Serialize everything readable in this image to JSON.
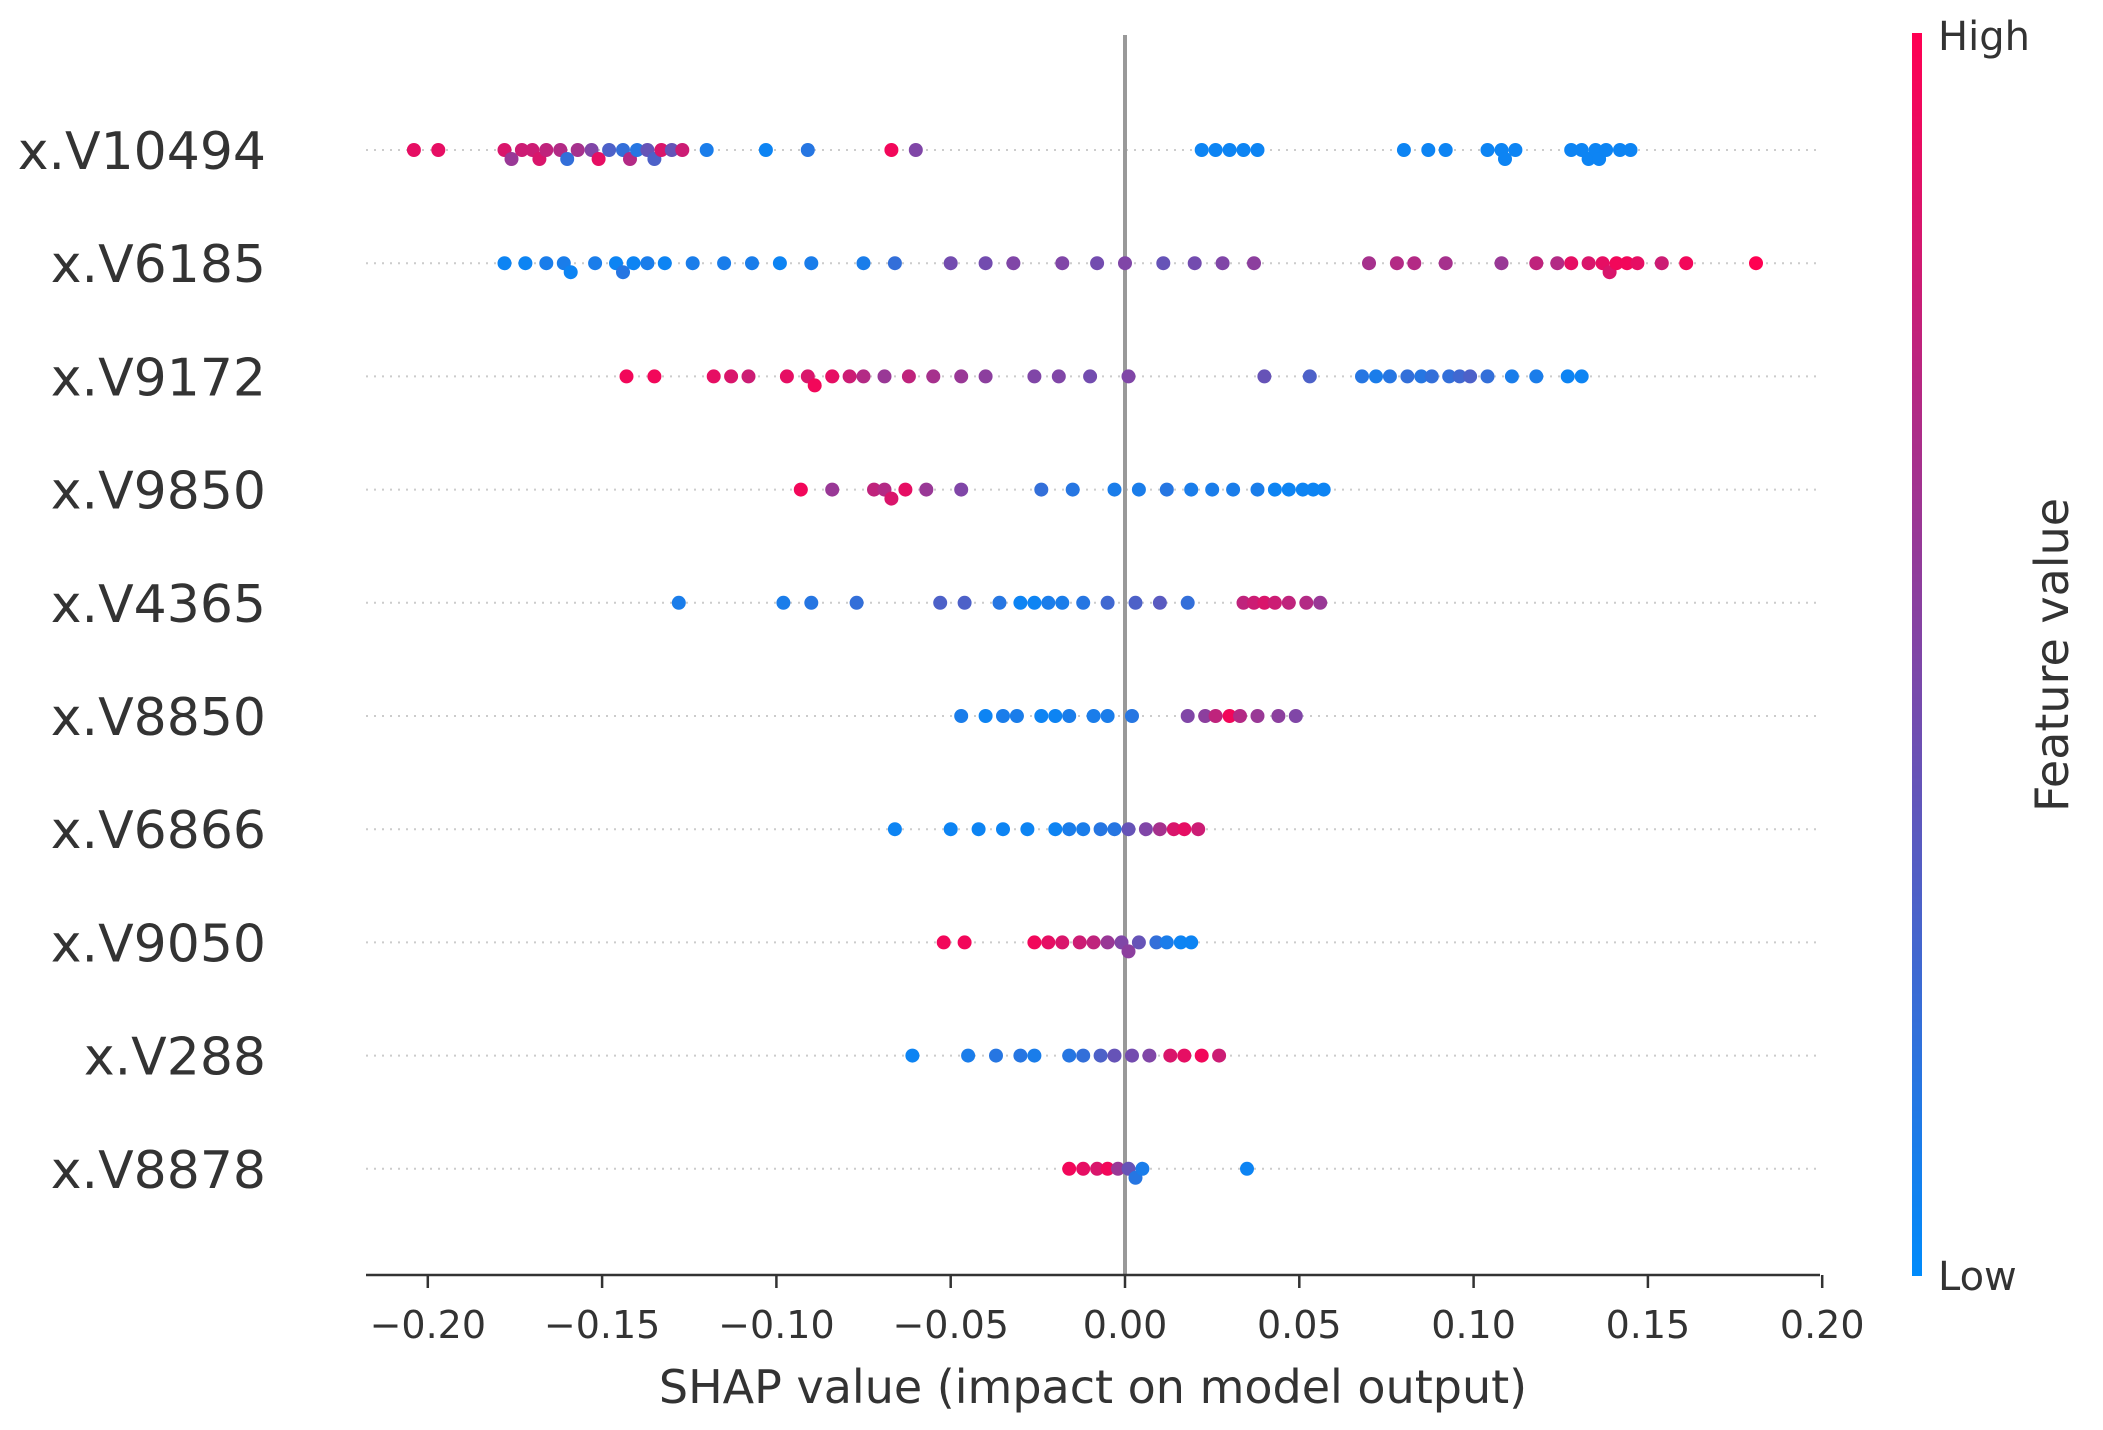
{
  "chart_data": {
    "type": "scatter",
    "subtype": "shap-beeswarm",
    "xlabel": "SHAP value (impact on model output)",
    "xlim": [
      -0.223,
      0.2
    ],
    "xticks": [
      -0.2,
      -0.15,
      -0.1,
      -0.05,
      0.0,
      0.05,
      0.1,
      0.15,
      0.2
    ],
    "xtick_labels": [
      "−0.20",
      "−0.15",
      "−0.10",
      "−0.05",
      "0.00",
      "0.05",
      "0.10",
      "0.15",
      "0.20"
    ],
    "grid": false,
    "zero_line": true,
    "colorbar": {
      "label": "Feature value",
      "high_label": "High",
      "low_label": "Low",
      "high_color": "#ff0052",
      "low_color": "#008bfb",
      "placement": "right"
    },
    "features": [
      {
        "name": "x.V10494",
        "points": [
          [
            -0.204,
            0.9
          ],
          [
            -0.197,
            0.9
          ],
          [
            -0.178,
            0.85
          ],
          [
            -0.173,
            0.8
          ],
          [
            -0.17,
            0.8
          ],
          [
            -0.166,
            0.75
          ],
          [
            -0.162,
            0.7
          ],
          [
            -0.157,
            0.65
          ],
          [
            -0.153,
            0.5
          ],
          [
            -0.148,
            0.3
          ],
          [
            -0.144,
            0.2
          ],
          [
            -0.14,
            0.15
          ],
          [
            -0.135,
            0.3
          ],
          [
            -0.13,
            0.4
          ],
          [
            -0.12,
            0.1
          ],
          [
            -0.103,
            0.05
          ],
          [
            -0.091,
            0.15
          ],
          [
            -0.067,
            0.95
          ],
          [
            -0.06,
            0.5
          ],
          [
            -0.176,
            0.6
          ],
          [
            -0.168,
            0.85
          ],
          [
            -0.16,
            0.2
          ],
          [
            -0.151,
            0.9
          ],
          [
            -0.142,
            0.7
          ],
          [
            -0.137,
            0.4
          ],
          [
            -0.133,
            0.85
          ],
          [
            -0.127,
            0.8
          ],
          [
            0.022,
            0.05
          ],
          [
            0.026,
            0.05
          ],
          [
            0.03,
            0.05
          ],
          [
            0.034,
            0.05
          ],
          [
            0.038,
            0.05
          ],
          [
            0.08,
            0.05
          ],
          [
            0.087,
            0.05
          ],
          [
            0.092,
            0.05
          ],
          [
            0.104,
            0.05
          ],
          [
            0.108,
            0.05
          ],
          [
            0.112,
            0.05
          ],
          [
            0.109,
            0.05
          ],
          [
            0.128,
            0.05
          ],
          [
            0.131,
            0.05
          ],
          [
            0.135,
            0.05
          ],
          [
            0.138,
            0.05
          ],
          [
            0.142,
            0.05
          ],
          [
            0.145,
            0.05
          ],
          [
            0.133,
            0.05
          ],
          [
            0.136,
            0.05
          ]
        ]
      },
      {
        "name": "x.V6185",
        "points": [
          [
            -0.178,
            0.05
          ],
          [
            -0.172,
            0.05
          ],
          [
            -0.166,
            0.1
          ],
          [
            -0.159,
            0.05
          ],
          [
            -0.152,
            0.1
          ],
          [
            -0.146,
            0.05
          ],
          [
            -0.141,
            0.05
          ],
          [
            -0.137,
            0.1
          ],
          [
            -0.132,
            0.05
          ],
          [
            -0.124,
            0.1
          ],
          [
            -0.115,
            0.1
          ],
          [
            -0.107,
            0.1
          ],
          [
            -0.099,
            0.05
          ],
          [
            -0.09,
            0.1
          ],
          [
            -0.075,
            0.1
          ],
          [
            -0.066,
            0.2
          ],
          [
            -0.05,
            0.45
          ],
          [
            -0.04,
            0.45
          ],
          [
            -0.032,
            0.5
          ],
          [
            -0.018,
            0.5
          ],
          [
            -0.008,
            0.45
          ],
          [
            0.0,
            0.5
          ],
          [
            0.011,
            0.4
          ],
          [
            0.02,
            0.45
          ],
          [
            0.028,
            0.5
          ],
          [
            0.037,
            0.55
          ],
          [
            0.07,
            0.65
          ],
          [
            0.078,
            0.7
          ],
          [
            0.083,
            0.7
          ],
          [
            0.092,
            0.65
          ],
          [
            0.108,
            0.6
          ],
          [
            0.118,
            0.75
          ],
          [
            0.124,
            0.7
          ],
          [
            0.133,
            0.85
          ],
          [
            0.137,
            0.9
          ],
          [
            0.141,
            0.95
          ],
          [
            0.147,
            0.9
          ],
          [
            0.154,
            0.8
          ],
          [
            0.161,
            0.95
          ],
          [
            0.181,
            1.0
          ],
          [
            -0.144,
            0.15
          ],
          [
            -0.161,
            0.1
          ],
          [
            0.128,
            0.9
          ],
          [
            0.139,
            0.85
          ],
          [
            0.144,
            0.95
          ]
        ]
      },
      {
        "name": "x.V9172",
        "points": [
          [
            -0.143,
            0.95
          ],
          [
            -0.135,
            0.95
          ],
          [
            -0.118,
            0.9
          ],
          [
            -0.108,
            0.8
          ],
          [
            -0.097,
            0.9
          ],
          [
            -0.089,
            0.95
          ],
          [
            -0.084,
            0.9
          ],
          [
            -0.079,
            0.8
          ],
          [
            -0.075,
            0.7
          ],
          [
            -0.069,
            0.6
          ],
          [
            -0.062,
            0.75
          ],
          [
            -0.055,
            0.65
          ],
          [
            -0.047,
            0.6
          ],
          [
            -0.04,
            0.55
          ],
          [
            -0.026,
            0.5
          ],
          [
            -0.019,
            0.5
          ],
          [
            -0.01,
            0.45
          ],
          [
            0.001,
            0.5
          ],
          [
            0.04,
            0.4
          ],
          [
            0.053,
            0.3
          ],
          [
            0.068,
            0.15
          ],
          [
            0.072,
            0.1
          ],
          [
            0.076,
            0.15
          ],
          [
            0.081,
            0.2
          ],
          [
            0.085,
            0.15
          ],
          [
            0.088,
            0.2
          ],
          [
            0.093,
            0.2
          ],
          [
            0.099,
            0.3
          ],
          [
            0.104,
            0.2
          ],
          [
            0.111,
            0.1
          ],
          [
            0.118,
            0.1
          ],
          [
            0.127,
            0.05
          ],
          [
            0.131,
            0.05
          ],
          [
            -0.113,
            0.85
          ],
          [
            -0.091,
            0.85
          ],
          [
            0.096,
            0.25
          ]
        ]
      },
      {
        "name": "x.V9850",
        "points": [
          [
            -0.093,
            0.95
          ],
          [
            -0.084,
            0.6
          ],
          [
            -0.072,
            0.75
          ],
          [
            -0.067,
            0.85
          ],
          [
            -0.063,
            0.9
          ],
          [
            -0.057,
            0.6
          ],
          [
            -0.047,
            0.5
          ],
          [
            -0.024,
            0.2
          ],
          [
            -0.015,
            0.15
          ],
          [
            -0.003,
            0.1
          ],
          [
            0.004,
            0.1
          ],
          [
            0.012,
            0.15
          ],
          [
            0.019,
            0.1
          ],
          [
            0.025,
            0.1
          ],
          [
            0.031,
            0.1
          ],
          [
            0.038,
            0.1
          ],
          [
            0.043,
            0.05
          ],
          [
            0.047,
            0.05
          ],
          [
            0.051,
            0.05
          ],
          [
            0.054,
            0.05
          ],
          [
            0.057,
            0.05
          ],
          [
            -0.069,
            0.7
          ]
        ]
      },
      {
        "name": "x.V4365",
        "points": [
          [
            -0.128,
            0.1
          ],
          [
            -0.098,
            0.1
          ],
          [
            -0.09,
            0.15
          ],
          [
            -0.077,
            0.2
          ],
          [
            -0.053,
            0.3
          ],
          [
            -0.046,
            0.3
          ],
          [
            -0.036,
            0.15
          ],
          [
            -0.03,
            0.05
          ],
          [
            -0.026,
            0.05
          ],
          [
            -0.022,
            0.1
          ],
          [
            -0.018,
            0.1
          ],
          [
            -0.012,
            0.15
          ],
          [
            -0.005,
            0.25
          ],
          [
            0.003,
            0.3
          ],
          [
            0.01,
            0.35
          ],
          [
            0.018,
            0.2
          ],
          [
            0.034,
            0.75
          ],
          [
            0.037,
            0.8
          ],
          [
            0.04,
            0.85
          ],
          [
            0.043,
            0.8
          ],
          [
            0.047,
            0.75
          ],
          [
            0.052,
            0.7
          ],
          [
            0.056,
            0.6
          ]
        ]
      },
      {
        "name": "x.V8850",
        "points": [
          [
            -0.047,
            0.1
          ],
          [
            -0.04,
            0.05
          ],
          [
            -0.035,
            0.1
          ],
          [
            -0.031,
            0.1
          ],
          [
            -0.024,
            0.05
          ],
          [
            -0.02,
            0.05
          ],
          [
            -0.016,
            0.1
          ],
          [
            -0.009,
            0.1
          ],
          [
            -0.005,
            0.1
          ],
          [
            0.002,
            0.15
          ],
          [
            0.018,
            0.5
          ],
          [
            0.023,
            0.55
          ],
          [
            0.026,
            0.75
          ],
          [
            0.03,
            0.95
          ],
          [
            0.033,
            0.7
          ],
          [
            0.038,
            0.6
          ],
          [
            0.044,
            0.55
          ],
          [
            0.049,
            0.5
          ]
        ]
      },
      {
        "name": "x.V6866",
        "points": [
          [
            -0.066,
            0.05
          ],
          [
            -0.05,
            0.05
          ],
          [
            -0.042,
            0.05
          ],
          [
            -0.035,
            0.05
          ],
          [
            -0.028,
            0.05
          ],
          [
            -0.02,
            0.05
          ],
          [
            -0.012,
            0.1
          ],
          [
            -0.007,
            0.15
          ],
          [
            -0.003,
            0.15
          ],
          [
            0.001,
            0.4
          ],
          [
            0.006,
            0.5
          ],
          [
            0.01,
            0.65
          ],
          [
            0.014,
            0.85
          ],
          [
            0.017,
            0.9
          ],
          [
            0.021,
            0.8
          ],
          [
            -0.016,
            0.1
          ]
        ]
      },
      {
        "name": "x.V9050",
        "points": [
          [
            -0.052,
            0.95
          ],
          [
            -0.046,
            0.95
          ],
          [
            -0.026,
            0.95
          ],
          [
            -0.022,
            0.9
          ],
          [
            -0.018,
            0.85
          ],
          [
            -0.013,
            0.8
          ],
          [
            -0.009,
            0.75
          ],
          [
            -0.005,
            0.6
          ],
          [
            -0.001,
            0.5
          ],
          [
            0.004,
            0.4
          ],
          [
            0.009,
            0.2
          ],
          [
            0.012,
            0.1
          ],
          [
            0.016,
            0.05
          ],
          [
            0.019,
            0.05
          ],
          [
            0.001,
            0.55
          ]
        ]
      },
      {
        "name": "x.V288",
        "points": [
          [
            -0.061,
            0.05
          ],
          [
            -0.045,
            0.1
          ],
          [
            -0.037,
            0.15
          ],
          [
            -0.03,
            0.15
          ],
          [
            -0.026,
            0.1
          ],
          [
            -0.012,
            0.2
          ],
          [
            -0.007,
            0.3
          ],
          [
            -0.003,
            0.4
          ],
          [
            0.002,
            0.45
          ],
          [
            0.007,
            0.5
          ],
          [
            0.013,
            0.85
          ],
          [
            0.017,
            0.9
          ],
          [
            0.022,
            0.95
          ],
          [
            0.027,
            0.8
          ],
          [
            -0.016,
            0.15
          ]
        ]
      },
      {
        "name": "x.V8878",
        "points": [
          [
            -0.016,
            0.95
          ],
          [
            -0.012,
            0.9
          ],
          [
            -0.008,
            0.85
          ],
          [
            -0.005,
            0.95
          ],
          [
            -0.002,
            0.6
          ],
          [
            0.001,
            0.4
          ],
          [
            0.003,
            0.15
          ],
          [
            0.005,
            0.1
          ],
          [
            0.035,
            0.05
          ]
        ]
      }
    ]
  }
}
